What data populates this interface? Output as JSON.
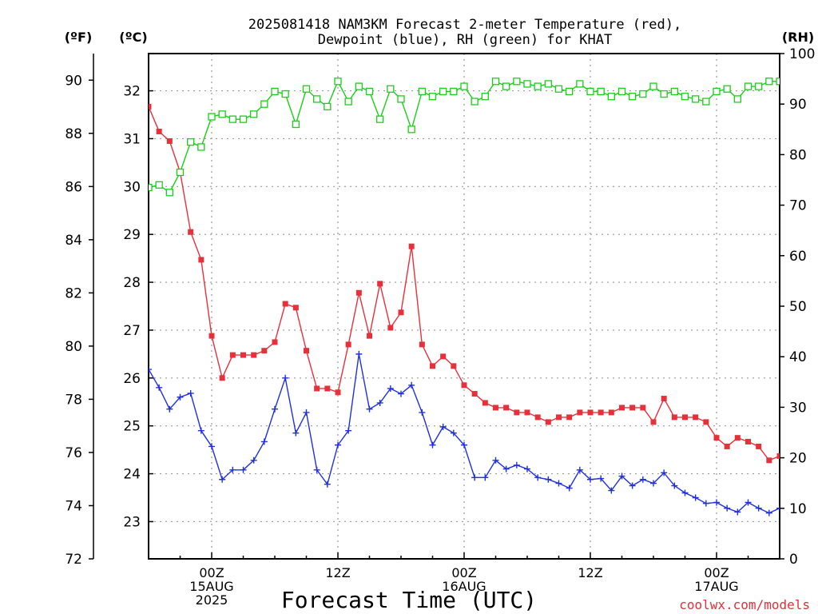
{
  "page": {
    "title_line1": "2025081418 NAM3KM Forecast 2-meter Temperature (red),",
    "title_line2": "Dewpoint (blue), RH (green) for KHAT",
    "credit": "coolwx.com/models"
  },
  "chart_data": {
    "type": "line",
    "title": "2025081418 NAM3KM Forecast 2-meter Temperature (red), Dewpoint (blue), RH (green) for KHAT",
    "xlabel": "Forecast Time (UTC)",
    "ylabel_left_f": "(ºF)",
    "ylabel_left_c": "(ºC)",
    "ylabel_right": "(RH)",
    "x_start_hour": 18,
    "x_step_hours": 1,
    "xlim": [
      18,
      78
    ],
    "x_ticks": [
      {
        "hour": 24,
        "label1": "00Z",
        "label2": "15AUG",
        "label3": "2025"
      },
      {
        "hour": 36,
        "label1": "12Z",
        "label2": "",
        "label3": ""
      },
      {
        "hour": 48,
        "label1": "00Z",
        "label2": "16AUG",
        "label3": ""
      },
      {
        "hour": 60,
        "label1": "12Z",
        "label2": "",
        "label3": ""
      },
      {
        "hour": 72,
        "label1": "00Z",
        "label2": "17AUG",
        "label3": ""
      }
    ],
    "ylim_c": [
      22.2222,
      32.7778
    ],
    "ylim_f": [
      72,
      91
    ],
    "ylim_rh": [
      0,
      100
    ],
    "yticks_f": [
      72,
      74,
      76,
      78,
      80,
      82,
      84,
      86,
      88,
      90
    ],
    "yticks_c": [
      23,
      24,
      25,
      26,
      27,
      28,
      29,
      30,
      31,
      32
    ],
    "yticks_rh": [
      0,
      10,
      20,
      30,
      40,
      50,
      60,
      70,
      80,
      90,
      100
    ],
    "grid": true,
    "series": [
      {
        "name": "Temperature",
        "unit": "C",
        "color": "#e8303a",
        "marker": "filled-square",
        "values": [
          31.67,
          31.15,
          30.95,
          30.3,
          29.05,
          28.47,
          26.88,
          26.0,
          26.48,
          26.48,
          26.48,
          26.57,
          26.75,
          27.55,
          27.47,
          26.57,
          25.78,
          25.78,
          25.7,
          26.7,
          27.78,
          26.88,
          27.97,
          27.05,
          27.37,
          28.75,
          26.7,
          26.25,
          26.45,
          26.25,
          25.85,
          25.67,
          25.48,
          25.38,
          25.38,
          25.28,
          25.28,
          25.18,
          25.08,
          25.18,
          25.18,
          25.28,
          25.28,
          25.28,
          25.28,
          25.38,
          25.38,
          25.38,
          25.08,
          25.57,
          25.18,
          25.18,
          25.18,
          25.08,
          24.75,
          24.57,
          24.75,
          24.67,
          24.57,
          24.28,
          24.37
        ]
      },
      {
        "name": "Dewpoint",
        "unit": "C",
        "color": "#2030e0",
        "marker": "plus",
        "values": [
          26.18,
          25.8,
          25.35,
          25.6,
          25.68,
          24.9,
          24.57,
          23.88,
          24.08,
          24.08,
          24.28,
          24.67,
          25.35,
          26.0,
          24.85,
          25.28,
          24.08,
          23.78,
          24.6,
          24.9,
          26.5,
          25.35,
          25.48,
          25.78,
          25.67,
          25.85,
          25.28,
          24.6,
          24.98,
          24.85,
          24.6,
          23.92,
          23.92,
          24.28,
          24.1,
          24.18,
          24.1,
          23.92,
          23.88,
          23.8,
          23.7,
          24.08,
          23.88,
          23.9,
          23.65,
          23.95,
          23.75,
          23.88,
          23.8,
          24.02,
          23.75,
          23.6,
          23.5,
          23.38,
          23.4,
          23.28,
          23.2,
          23.4,
          23.28,
          23.18,
          23.28
        ]
      },
      {
        "name": "RH",
        "unit": "%",
        "color": "#18d018",
        "marker": "open-square",
        "values": [
          73.5,
          74.0,
          72.5,
          76.5,
          82.5,
          81.5,
          87.5,
          88.0,
          87.0,
          87.0,
          88.0,
          90.0,
          92.5,
          92.0,
          86.0,
          93.0,
          91.0,
          89.5,
          94.5,
          90.5,
          93.5,
          92.5,
          87.0,
          93.0,
          91.0,
          85.0,
          92.5,
          91.5,
          92.5,
          92.5,
          93.5,
          90.5,
          91.5,
          94.5,
          93.5,
          94.5,
          94.0,
          93.5,
          94.0,
          93.0,
          92.5,
          94.0,
          92.5,
          92.5,
          91.5,
          92.5,
          91.5,
          92.0,
          93.5,
          92.0,
          92.5,
          91.5,
          91.0,
          90.5,
          92.5,
          93.0,
          91.0,
          93.5,
          93.5,
          94.5,
          94.5
        ]
      }
    ]
  }
}
